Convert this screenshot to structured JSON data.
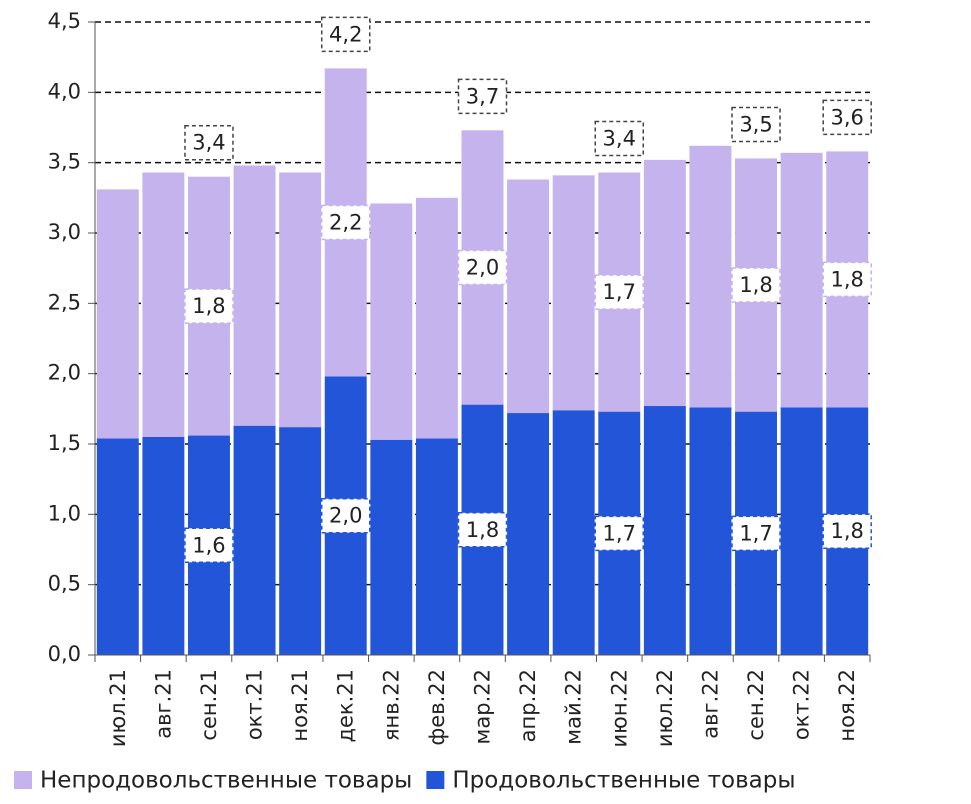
{
  "chart_data": {
    "type": "stacked_bar",
    "categories": [
      "июл.21",
      "авг.21",
      "сен.21",
      "окт.21",
      "ноя.21",
      "дек.21",
      "янв.22",
      "фев.22",
      "мар.22",
      "апр.22",
      "май.22",
      "июн.22",
      "июл.22",
      "авг.22",
      "сен.22",
      "окт.22",
      "ноя.22"
    ],
    "series": [
      {
        "name": "Продовольственные товары",
        "color": "#2255d8",
        "values": [
          1.54,
          1.55,
          1.56,
          1.63,
          1.62,
          1.98,
          1.53,
          1.54,
          1.78,
          1.72,
          1.74,
          1.73,
          1.77,
          1.76,
          1.73,
          1.76,
          1.76
        ],
        "value_labels": [
          null,
          null,
          "1,6",
          null,
          null,
          "2,0",
          null,
          null,
          "1,8",
          null,
          null,
          "1,7",
          null,
          null,
          "1,7",
          null,
          "1,8"
        ]
      },
      {
        "name": "Непродовольственные товары",
        "color": "#c4b3ec",
        "values": [
          1.77,
          1.88,
          1.84,
          1.85,
          1.81,
          2.19,
          1.68,
          1.71,
          1.95,
          1.66,
          1.67,
          1.7,
          1.75,
          1.86,
          1.8,
          1.81,
          1.82
        ],
        "value_labels": [
          null,
          null,
          "1,8",
          null,
          null,
          "2,2",
          null,
          null,
          "2,0",
          null,
          null,
          "1,7",
          null,
          null,
          "1,8",
          null,
          "1,8"
        ]
      }
    ],
    "totals": {
      "values": [
        null,
        null,
        3.4,
        null,
        null,
        4.17,
        null,
        null,
        3.73,
        null,
        null,
        3.43,
        null,
        null,
        3.53,
        null,
        3.58
      ],
      "value_labels": [
        null,
        null,
        "3,4",
        null,
        null,
        "4,2",
        null,
        null,
        "3,7",
        null,
        null,
        "3,4",
        null,
        null,
        "3,5",
        null,
        "3,6"
      ]
    },
    "ylim": [
      0,
      4.5
    ],
    "yticks": [
      {
        "value": 0,
        "label": "0,0"
      },
      {
        "value": 0.5,
        "label": "0,5"
      },
      {
        "value": 1,
        "label": "1,0"
      },
      {
        "value": 1.5,
        "label": "1,5"
      },
      {
        "value": 2,
        "label": "2,0"
      },
      {
        "value": 2.5,
        "label": "2,5"
      },
      {
        "value": 3,
        "label": "3,0"
      },
      {
        "value": 3.5,
        "label": "3,5"
      },
      {
        "value": 4,
        "label": "4,0"
      },
      {
        "value": 4.5,
        "label": "4,5"
      }
    ],
    "grid": true,
    "legend": "bottom"
  }
}
